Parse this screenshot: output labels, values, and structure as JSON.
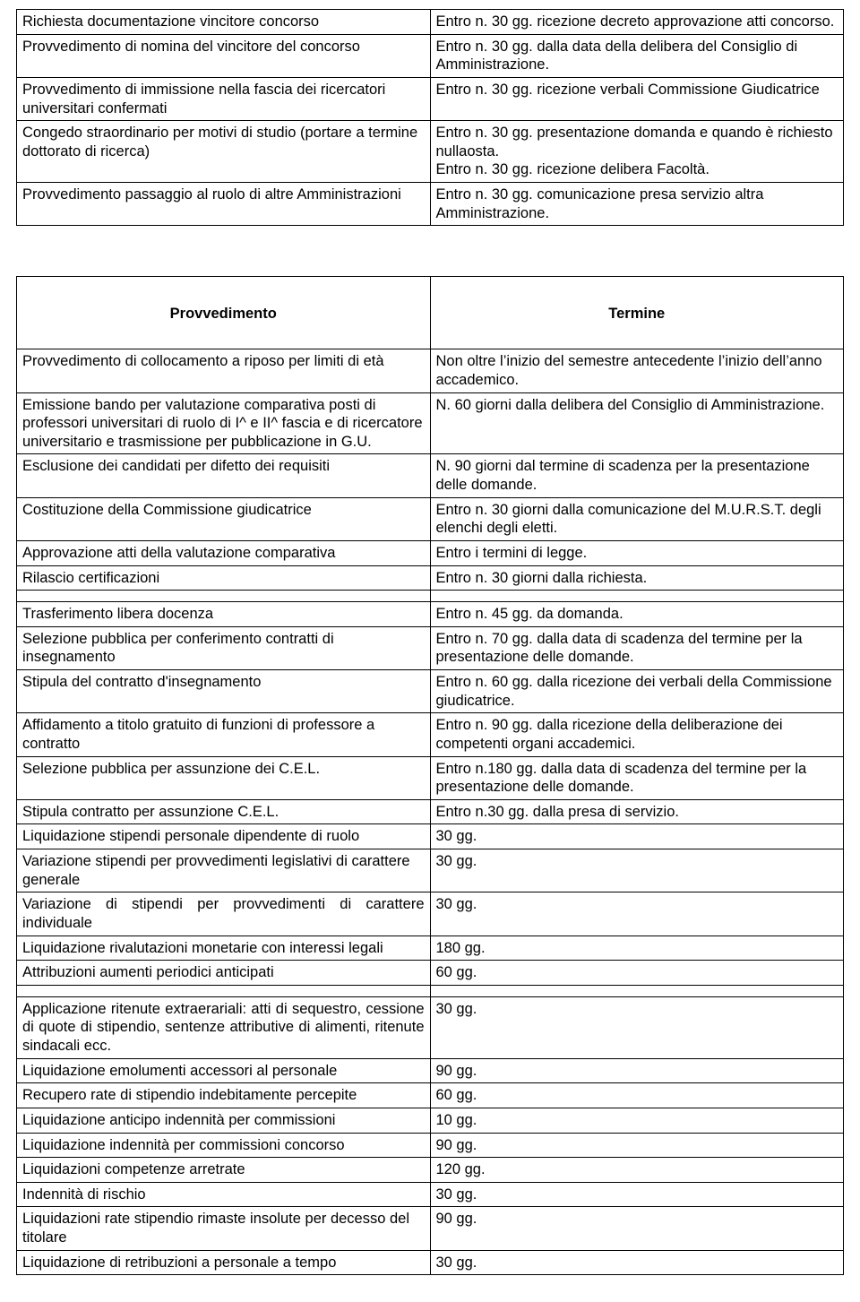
{
  "table1": {
    "rows": [
      {
        "p": "Richiesta  documentazione  vincitore concorso",
        "t": "Entro n. 30 gg. ricezione decreto approvazione atti concorso."
      },
      {
        "p": "Provvedimento di nomina del vincitore  del concorso",
        "t": "Entro n. 30 gg. dalla data della delibera del Consiglio di Amministrazione."
      },
      {
        "p": "Provvedimento di immissione  nella fascia dei ricercatori universitari confermati",
        "t": "Entro n. 30 gg. ricezione verbali Commissione Giudicatrice"
      },
      {
        "p": "Congedo straordinario  per motivi di studio (portare a termine  dottorato di ricerca)",
        "t": "Entro n. 30 gg. presentazione domanda  e quando è richiesto nullaosta.\nEntro n. 30 gg. ricezione delibera Facoltà."
      },
      {
        "p": "Provvedimento  passaggio  al ruolo di altre Amministrazioni",
        "t": "Entro n. 30 gg. comunicazione  presa  servizio altra Amministrazione."
      }
    ]
  },
  "table2": {
    "header": {
      "left": "Provvedimento",
      "right": "Termine"
    },
    "rows": [
      {
        "p": "Provvedimento di collocamento a riposo per limiti di età",
        "t": "Non  oltre l’inizio del semestre antecedente l’inizio dell’anno accademico."
      },
      {
        "p": "Emissione bando per  valutazione comparativa posti di professori universitari di ruolo di I^ e II^ fascia e di ricercatore universitario e trasmissione per pubblicazione in G.U.",
        "t": "N. 60 giorni dalla delibera del Consiglio di Amministrazione."
      },
      {
        "p": "Esclusione dei candidati per difetto dei requisiti",
        "t": "N. 90 giorni dal termine di scadenza per la presentazione delle domande."
      },
      {
        "p": "Costituzione della Commissione giudicatrice",
        "t": "Entro n. 30 giorni dalla comunicazione del M.U.R.S.T. degli elenchi degli eletti."
      },
      {
        "p": "Approvazione atti della valutazione comparativa",
        "t": "Entro i termini di legge."
      },
      {
        "p": "Rilascio certificazioni",
        "t": "Entro n. 30 giorni dalla richiesta."
      },
      {
        "spacer": true
      },
      {
        "p": "Trasferimento libera docenza",
        "t": "Entro n. 45 gg. da domanda."
      },
      {
        "p": "Selezione pubblica per conferimento contratti di insegnamento",
        "t": "Entro n. 70 gg. dalla data di scadenza del termine per la presentazione delle domande."
      },
      {
        "p": "Stipula del contratto d'insegnamento",
        "t": "Entro n. 60 gg. dalla ricezione dei verbali della Commissione giudicatrice."
      },
      {
        "p": "Affidamento a titolo gratuito di funzioni di professore a contratto",
        "t": "Entro n. 90 gg. dalla ricezione della deliberazione dei competenti organi accademici."
      },
      {
        "p": "Selezione pubblica per assunzione dei C.E.L.",
        "t": "Entro n.180 gg. dalla data di scadenza del termine per la presentazione delle domande."
      },
      {
        "p": "Stipula contratto per assunzione C.E.L.",
        "t": "Entro n.30 gg. dalla presa di servizio."
      },
      {
        "p": "Liquidazione stipendi personale dipendente di ruolo",
        "t": "30 gg."
      },
      {
        "p": "Variazione stipendi per provvedimenti legislativi di carattere generale",
        "t": "30 gg."
      },
      {
        "p": "Variazione di stipendi per provvedimenti di carattere individuale",
        "t": "30 gg.",
        "justify": true
      },
      {
        "p": "Liquidazione rivalutazioni monetarie con interessi legali",
        "t": "180 gg."
      },
      {
        "p": "Attribuzioni  aumenti periodici anticipati",
        "t": "60 gg."
      },
      {
        "spacer": true
      },
      {
        "p": "Applicazione ritenute extraerariali: atti di sequestro, cessione di quote di stipendio, sentenze attributive di alimenti, ritenute sindacali ecc.",
        "t": "30 gg.",
        "justify": true
      },
      {
        "p": "Liquidazione emolumenti accessori al personale",
        "t": "90 gg."
      },
      {
        "p": "Recupero rate di stipendio indebitamente percepite",
        "t": "60 gg."
      },
      {
        "p": "Liquidazione anticipo indennità per commissioni",
        "t": "10 gg."
      },
      {
        "p": "Liquidazione indennità per commissioni concorso",
        "t": "90 gg."
      },
      {
        "p": "Liquidazioni competenze arretrate",
        "t": "120 gg."
      },
      {
        "p": "Indennità di rischio",
        "t": "30 gg."
      },
      {
        "p": "Liquidazioni rate stipendio rimaste insolute per decesso del titolare",
        "t": "90 gg."
      },
      {
        "p": "Liquidazione di retribuzioni a personale a tempo",
        "t": "30 gg."
      }
    ]
  }
}
